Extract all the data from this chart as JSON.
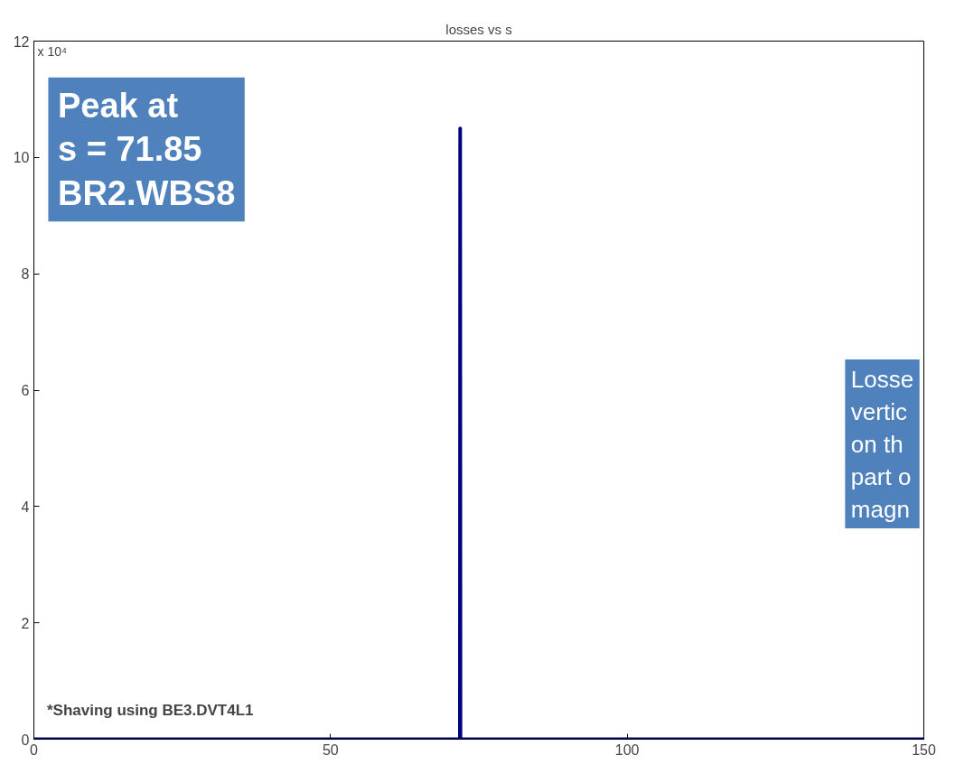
{
  "chart_data": {
    "type": "line",
    "title": "losses vs s",
    "series": [
      {
        "color": "#00007f",
        "x": [
          0,
          71.8,
          71.85,
          71.9,
          150
        ],
        "values": [
          0,
          0,
          10.5,
          0,
          0
        ]
      }
    ],
    "xlim": [
      0,
      150
    ],
    "xticks": [
      0,
      50,
      100,
      150
    ],
    "ylim": [
      0,
      12
    ],
    "yticks": [
      0,
      2,
      4,
      6,
      8,
      10,
      12
    ],
    "grid": false,
    "marker": "none",
    "line_style": "solid",
    "annotations": [
      "x 10⁴",
      "Peak at\ns = 71.85\nBR2.WBS8",
      "Losse\nvertic\non th\npart o\nmagn",
      "*Shaving using BE3.DVT4L1"
    ]
  }
}
